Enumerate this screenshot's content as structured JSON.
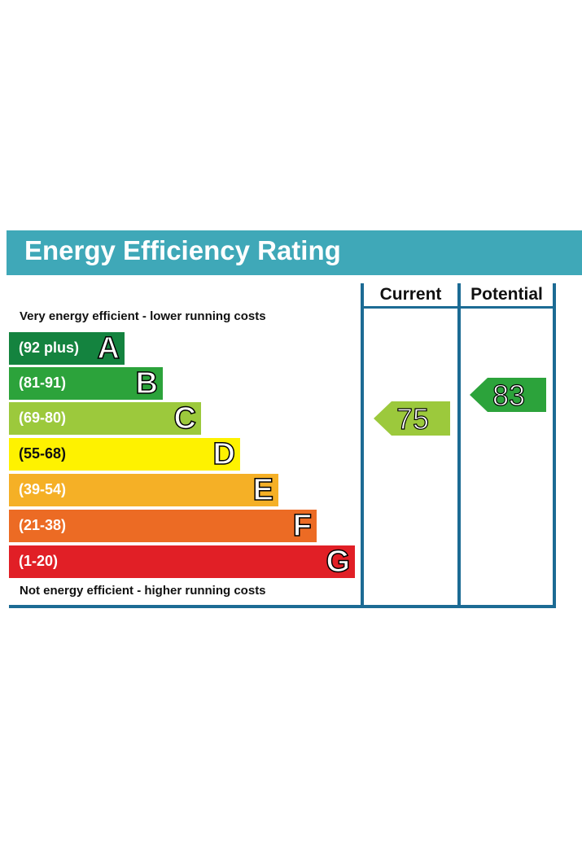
{
  "title": "Energy Efficiency Rating",
  "top_label": "Very energy efficient - lower running costs",
  "bottom_label": "Not energy efficient - higher running costs",
  "columns": {
    "current": "Current",
    "potential": "Potential"
  },
  "colors": {
    "title_bg": "#3fa8b8",
    "frame": "#1c6b94"
  },
  "chart_data": {
    "type": "bar",
    "bands": [
      {
        "range": "(92 plus)",
        "letter": "A",
        "color": "#14833f"
      },
      {
        "range": "(81-91)",
        "letter": "B",
        "color": "#2ca33b"
      },
      {
        "range": "(69-80)",
        "letter": "C",
        "color": "#9cc93c"
      },
      {
        "range": "(55-68)",
        "letter": "D",
        "color": "#fef200"
      },
      {
        "range": "(39-54)",
        "letter": "E",
        "color": "#f5b026"
      },
      {
        "range": "(21-38)",
        "letter": "F",
        "color": "#ec6b24"
      },
      {
        "range": "(1-20)",
        "letter": "G",
        "color": "#e11f26"
      }
    ],
    "current": {
      "value": "75",
      "band": "C",
      "color": "#9cc93c"
    },
    "potential": {
      "value": "83",
      "band": "B",
      "color": "#2ca33b"
    }
  }
}
